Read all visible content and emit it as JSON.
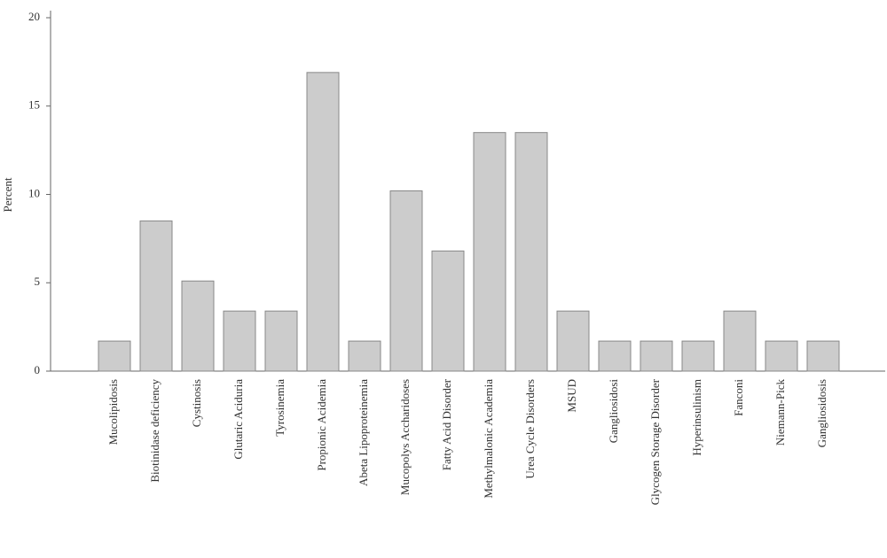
{
  "chart_data": {
    "type": "bar",
    "y_label": "Percent",
    "categories": [
      "Mucolipidosis",
      "Biotinidase deficiency",
      "Cystinosis",
      "Glutaric Aciduria",
      "Tyrosinemia",
      "Propionic Acidemia",
      "Abeta Lipoproteinemia",
      "Mucopolys Accharidoses",
      "Fatty Acid Disorder",
      "Methylmalonic Academia",
      "Urea Cycle Disorders",
      "MSUD",
      "Gangliosidosi",
      "Glycogen Storage Disorder",
      "Hyperinsulinism",
      "Fanconi",
      "Niemann-Pick",
      "Gangliosidosis"
    ],
    "values": [
      1.7,
      8.5,
      5.1,
      3.4,
      3.4,
      16.9,
      1.7,
      10.2,
      6.8,
      13.5,
      13.5,
      3.4,
      1.7,
      1.7,
      1.7,
      3.4,
      1.7,
      1.7
    ],
    "color": "#cccccc",
    "ylim": [
      0,
      20
    ],
    "yticks": [
      0,
      5,
      10,
      15,
      20
    ],
    "grid": false
  }
}
